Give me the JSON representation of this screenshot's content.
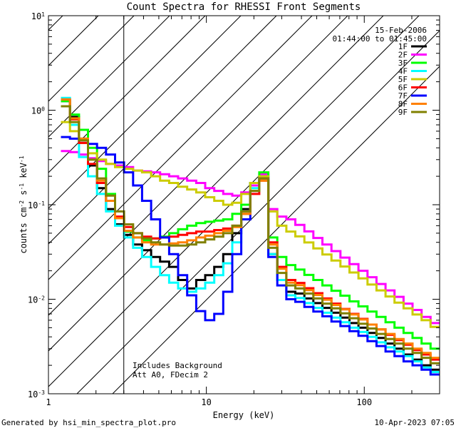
{
  "chart_data": {
    "type": "line",
    "title": "Count Spectra for RHESSI Front Segments",
    "xlabel": "Energy (keV)",
    "ylabel_parts": [
      "counts cm",
      "-2",
      " s",
      "-1",
      " keV",
      "-1"
    ],
    "xscale": "log",
    "yscale": "log",
    "xlim": [
      1,
      300
    ],
    "ylim": [
      0.001,
      10
    ],
    "x_ticks": [
      {
        "value": 1,
        "label": "1"
      },
      {
        "value": 10,
        "label": "10"
      },
      {
        "value": 100,
        "label": "100"
      }
    ],
    "y_ticks": [
      {
        "value": 0.001,
        "base": "10",
        "exp": "-3"
      },
      {
        "value": 0.01,
        "base": "10",
        "exp": "-2"
      },
      {
        "value": 0.1,
        "base": "10",
        "exp": "-1"
      },
      {
        "value": 1,
        "base": "10",
        "exp": "0"
      },
      {
        "value": 10,
        "base": "10",
        "exp": "1"
      }
    ],
    "date": "15-Feb-2006",
    "time_range": "01:44:00 to 01:45:00",
    "hatched_region_max_kev": 3,
    "annotations": [
      "Includes Background",
      "Att A0, FDecim 2"
    ],
    "series": [
      {
        "name": "1F",
        "color": "#000000",
        "values": [
          1.25,
          0.85,
          0.5,
          0.26,
          0.15,
          0.09,
          0.062,
          0.048,
          0.038,
          0.033,
          0.028,
          0.025,
          0.022,
          0.016,
          0.013,
          0.016,
          0.018,
          0.022,
          0.03,
          0.05,
          0.09,
          0.17,
          0.2,
          0.03,
          0.016,
          0.012,
          0.0115,
          0.0102,
          0.0091,
          0.0081,
          0.0072,
          0.0064,
          0.0056,
          0.005,
          0.0044,
          0.0039,
          0.0034,
          0.003,
          0.0026,
          0.0023,
          0.002,
          0.0018
        ]
      },
      {
        "name": "2F",
        "color": "#ff00ff",
        "values": [
          0.37,
          0.36,
          0.34,
          0.31,
          0.29,
          0.27,
          0.26,
          0.25,
          0.23,
          0.225,
          0.22,
          0.21,
          0.2,
          0.19,
          0.18,
          0.17,
          0.15,
          0.14,
          0.13,
          0.125,
          0.135,
          0.16,
          0.21,
          0.09,
          0.075,
          0.07,
          0.0613,
          0.0522,
          0.0445,
          0.0379,
          0.0323,
          0.0276,
          0.0235,
          0.02,
          0.0171,
          0.0145,
          0.0124,
          0.0106,
          0.009,
          0.0077,
          0.0065,
          0.0056
        ]
      },
      {
        "name": "3F",
        "color": "#00ff00",
        "values": [
          1.25,
          0.9,
          0.62,
          0.4,
          0.24,
          0.13,
          0.074,
          0.052,
          0.045,
          0.042,
          0.044,
          0.046,
          0.05,
          0.055,
          0.06,
          0.064,
          0.066,
          0.068,
          0.07,
          0.08,
          0.1,
          0.17,
          0.22,
          0.045,
          0.028,
          0.023,
          0.0206,
          0.0181,
          0.016,
          0.014,
          0.0123,
          0.0109,
          0.0095,
          0.0084,
          0.0074,
          0.0065,
          0.0057,
          0.005,
          0.0044,
          0.0039,
          0.0034,
          0.003
        ]
      },
      {
        "name": "4F",
        "color": "#00ffff",
        "values": [
          1.35,
          0.7,
          0.32,
          0.2,
          0.13,
          0.085,
          0.06,
          0.045,
          0.035,
          0.028,
          0.022,
          0.018,
          0.015,
          0.013,
          0.012,
          0.013,
          0.015,
          0.018,
          0.024,
          0.04,
          0.08,
          0.15,
          0.2,
          0.03,
          0.016,
          0.011,
          0.0103,
          0.0091,
          0.0081,
          0.0072,
          0.0064,
          0.0057,
          0.005,
          0.0045,
          0.004,
          0.0035,
          0.0031,
          0.0028,
          0.0025,
          0.0022,
          0.0019,
          0.0017
        ]
      },
      {
        "name": "5F",
        "color": "#cccc00",
        "values": [
          0.75,
          0.6,
          0.45,
          0.35,
          0.3,
          0.27,
          0.25,
          0.24,
          0.23,
          0.22,
          0.2,
          0.18,
          0.17,
          0.155,
          0.145,
          0.135,
          0.12,
          0.11,
          0.1,
          0.105,
          0.13,
          0.17,
          0.2,
          0.085,
          0.06,
          0.052,
          0.0462,
          0.0399,
          0.0345,
          0.0298,
          0.0257,
          0.0222,
          0.0192,
          0.0166,
          0.0143,
          0.0124,
          0.0107,
          0.0092,
          0.008,
          0.0069,
          0.006,
          0.0051
        ]
      },
      {
        "name": "6F",
        "color": "#ff0000",
        "values": [
          1.3,
          0.8,
          0.45,
          0.27,
          0.17,
          0.11,
          0.075,
          0.058,
          0.05,
          0.046,
          0.044,
          0.045,
          0.046,
          0.048,
          0.05,
          0.052,
          0.052,
          0.054,
          0.056,
          0.06,
          0.08,
          0.13,
          0.18,
          0.04,
          0.022,
          0.016,
          0.0149,
          0.0131,
          0.0116,
          0.0102,
          0.009,
          0.0079,
          0.007,
          0.0062,
          0.0054,
          0.0048,
          0.0042,
          0.0037,
          0.0033,
          0.0029,
          0.0026,
          0.0023
        ]
      },
      {
        "name": "7F",
        "color": "#0000ff",
        "values": [
          0.52,
          0.5,
          0.48,
          0.44,
          0.4,
          0.34,
          0.28,
          0.22,
          0.16,
          0.11,
          0.07,
          0.045,
          0.03,
          0.018,
          0.011,
          0.0075,
          0.006,
          0.007,
          0.012,
          0.03,
          0.07,
          0.14,
          0.19,
          0.028,
          0.014,
          0.01,
          0.0094,
          0.0083,
          0.0074,
          0.0066,
          0.0058,
          0.0052,
          0.0046,
          0.0041,
          0.0036,
          0.0032,
          0.0028,
          0.0025,
          0.0022,
          0.002,
          0.0018,
          0.0016
        ]
      },
      {
        "name": "8F",
        "color": "#ff8000",
        "values": [
          1.3,
          0.82,
          0.5,
          0.3,
          0.18,
          0.11,
          0.072,
          0.053,
          0.045,
          0.04,
          0.038,
          0.038,
          0.039,
          0.04,
          0.042,
          0.045,
          0.047,
          0.05,
          0.053,
          0.058,
          0.08,
          0.14,
          0.18,
          0.038,
          0.021,
          0.015,
          0.0141,
          0.0125,
          0.0111,
          0.0099,
          0.0087,
          0.0078,
          0.0069,
          0.0061,
          0.0054,
          0.0048,
          0.0043,
          0.0038,
          0.0034,
          0.003,
          0.0027,
          0.0024
        ]
      },
      {
        "name": "9F",
        "color": "#808000",
        "values": [
          1.1,
          0.75,
          0.48,
          0.3,
          0.19,
          0.125,
          0.085,
          0.062,
          0.05,
          0.044,
          0.04,
          0.038,
          0.037,
          0.037,
          0.038,
          0.04,
          0.043,
          0.046,
          0.05,
          0.06,
          0.085,
          0.14,
          0.19,
          0.035,
          0.019,
          0.014,
          0.013,
          0.0115,
          0.0102,
          0.009,
          0.008,
          0.0071,
          0.0063,
          0.0055,
          0.0049,
          0.0043,
          0.0038,
          0.0034,
          0.003,
          0.0027,
          0.0024,
          0.0021
        ]
      }
    ]
  },
  "footer": {
    "left": "Generated by hsi_min_spectra_plot.pro",
    "right": "10-Apr-2023 07:05"
  }
}
